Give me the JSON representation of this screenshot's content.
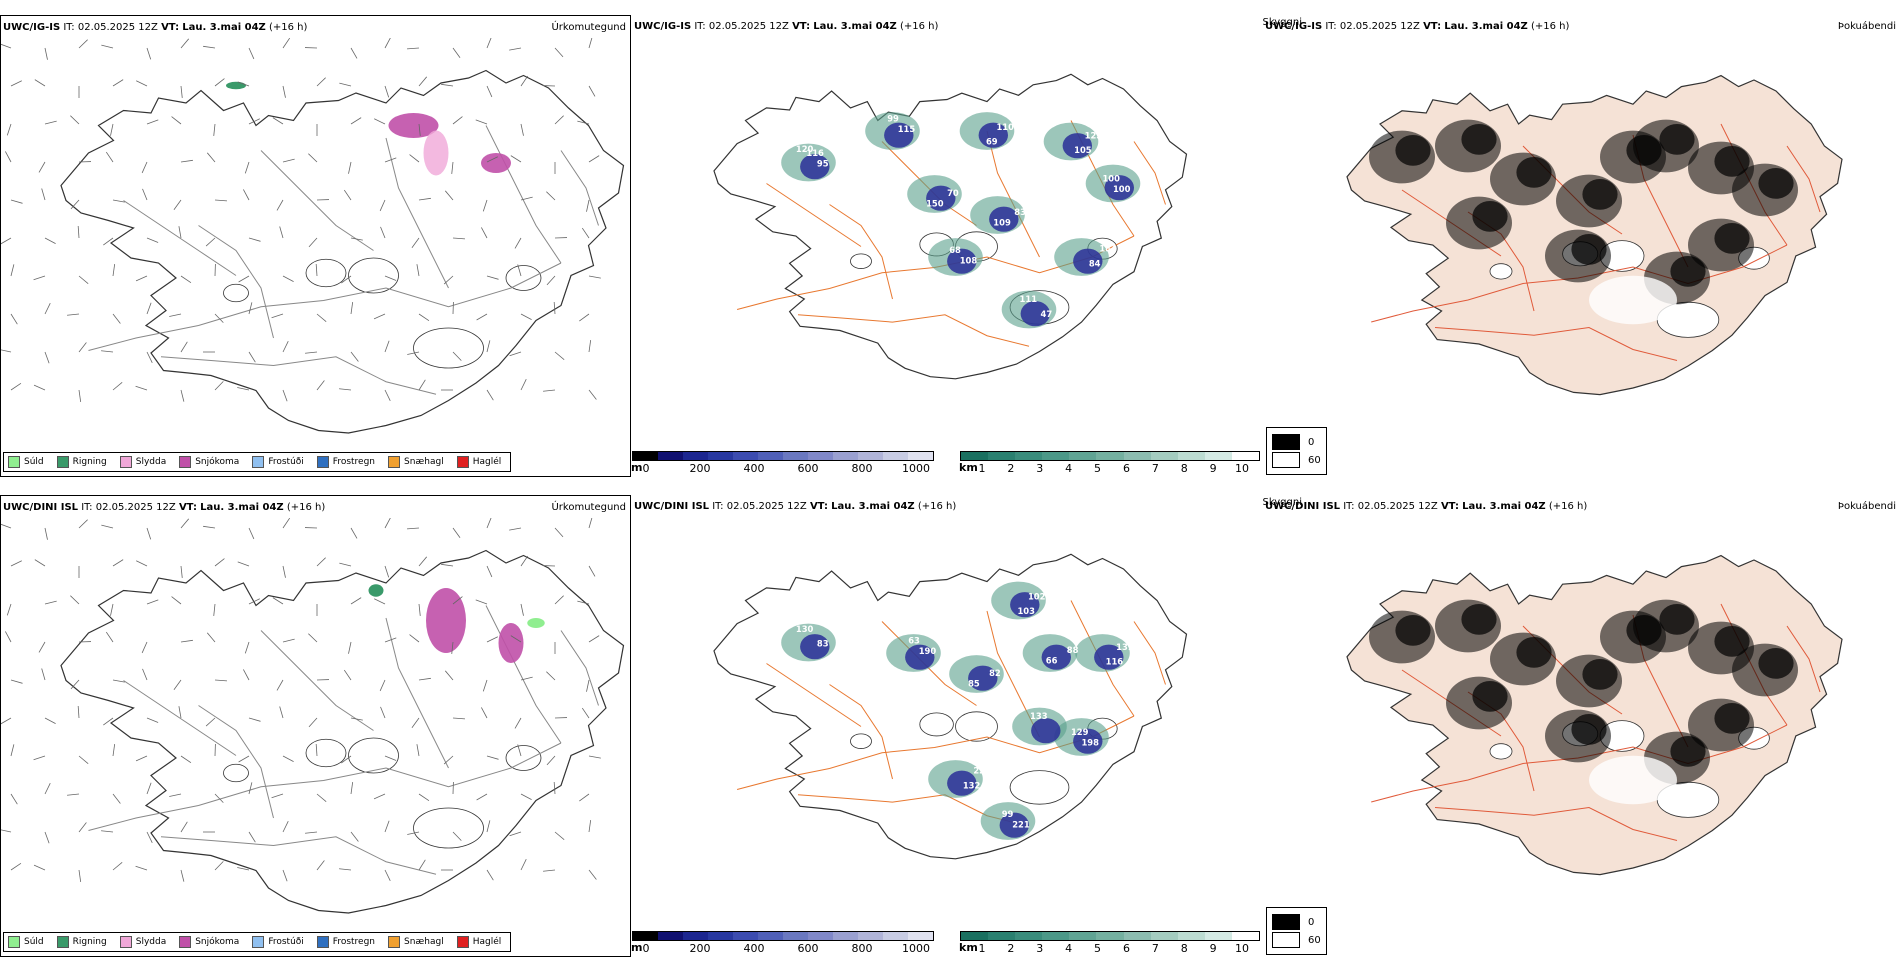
{
  "rows": [
    {
      "model": "UWC/IG-IS",
      "it_label": "IT:",
      "it_value": "02.05.2025 12Z",
      "vt_label": "VT:",
      "vt_value": "Lau. 3.mai 04Z",
      "lead": "(+16 h)",
      "precip_title": "Úrkomutegund",
      "cloud_title": "Skyggni",
      "cover_title": "Þokuábendi"
    },
    {
      "model": "UWC/DINI ISL",
      "it_label": "IT:",
      "it_value": "02.05.2025 12Z",
      "vt_label": "VT:",
      "vt_value": "Lau. 3.mai 04Z",
      "lead": "(+16 h)",
      "precip_title": "Úrkomutegund",
      "cloud_title": "Skyggni",
      "cover_title": "Þokuábendi"
    }
  ],
  "precip_legend": [
    {
      "label": "Súld",
      "color": "#90ee90"
    },
    {
      "label": "Rigning",
      "color": "#3a9a6a"
    },
    {
      "label": "Slydda",
      "color": "#f0a8d8"
    },
    {
      "label": "Snjókoma",
      "color": "#c050a8"
    },
    {
      "label": "Frostúði",
      "color": "#90c0f0"
    },
    {
      "label": "Frostregn",
      "color": "#3070c0"
    },
    {
      "label": "Snæhagl",
      "color": "#f0a030"
    },
    {
      "label": "Haglél",
      "color": "#e02020"
    }
  ],
  "cloud_base_bar": {
    "unit": "m",
    "ticks": [
      "0",
      "200",
      "400",
      "600",
      "800",
      "1000"
    ],
    "colors": [
      "#000000",
      "#101070",
      "#1c2690",
      "#2838a0",
      "#3c4cb0",
      "#5060b8",
      "#6a78c0",
      "#8088c8",
      "#9aa0d0",
      "#b0b4d8",
      "#c8cce4",
      "#e0e2f0"
    ]
  },
  "visibility_bar": {
    "unit": "km",
    "ticks": [
      "1",
      "2",
      "3",
      "4",
      "5",
      "6",
      "7",
      "8",
      "9",
      "10"
    ],
    "colors": [
      "#1a7060",
      "#2a8070",
      "#3a8c7c",
      "#4c9888",
      "#60a494",
      "#74b0a0",
      "#8cbcb0",
      "#a4ccc0",
      "#bcdcd2",
      "#d4eae4",
      "#ffffff"
    ]
  },
  "cover_legend": [
    {
      "label": "0",
      "color": "#000000"
    },
    {
      "label": "60",
      "color": "#ffffff"
    }
  ],
  "cloud_labels": [
    {
      "values": [
        "120",
        "115",
        "150",
        "110",
        "109",
        "125",
        "100",
        "184",
        "108",
        "111",
        "95",
        "99",
        "70",
        "69",
        "83",
        "105",
        "100",
        "84",
        "68",
        "47",
        "116"
      ]
    },
    {
      "values": [
        "130",
        "190",
        "85",
        "102",
        "66",
        "131",
        "198",
        "222",
        "221",
        "133",
        "83",
        "63",
        "82",
        "103",
        "88",
        "116",
        "129",
        "132",
        "99"
      ]
    }
  ],
  "colors": {
    "road": "#e87830",
    "coast": "#333333",
    "rain": "#3a9a6a",
    "snow": "#c050a8",
    "sleet": "#f0a8d8",
    "land_tint": "#f5e2d6",
    "fog_road": "#e05a3a"
  }
}
